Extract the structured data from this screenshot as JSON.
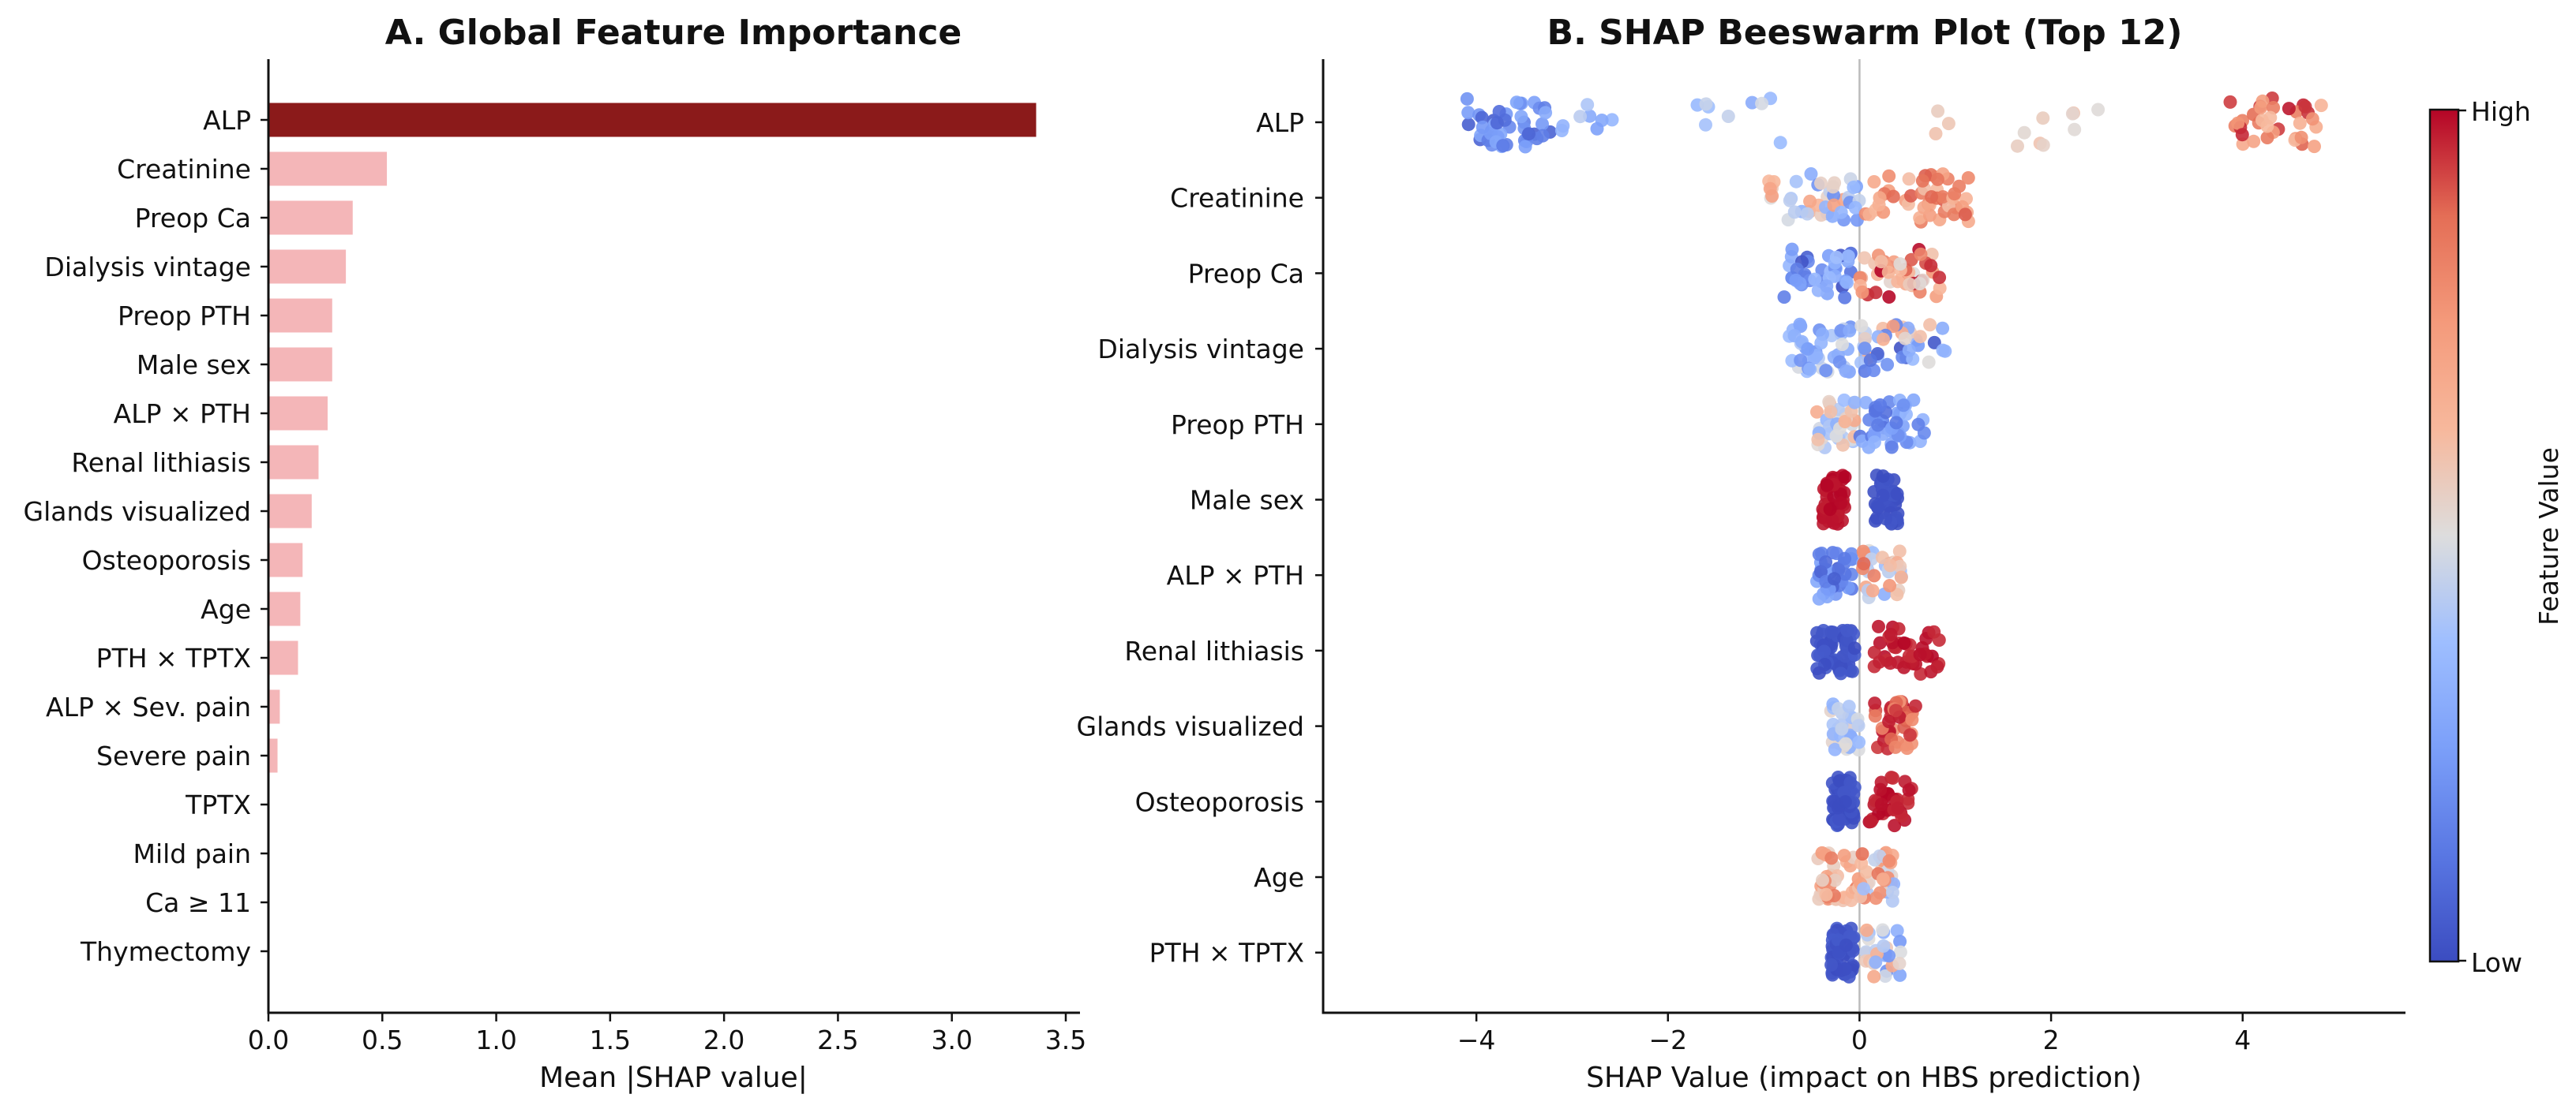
{
  "colors": {
    "bar_top": "#8b1a1a",
    "bar_rest": "#f4b6b8",
    "high": "#b40426",
    "mid": "#dddddd",
    "low": "#3b4cc0",
    "axis": "#111111",
    "zero_line": "#bbbbbb"
  },
  "chart_data": [
    {
      "type": "bar",
      "orientation": "horizontal",
      "title": "A. Global Feature Importance",
      "xlabel": "Mean |SHAP value|",
      "ylabel": "",
      "xlim": [
        0,
        3.5
      ],
      "xticks": [
        "0.0",
        "0.5",
        "1.0",
        "1.5",
        "2.0",
        "2.5",
        "3.0",
        "3.5"
      ],
      "categories": [
        "ALP",
        "Creatinine",
        "Preop Ca",
        "Dialysis vintage",
        "Preop PTH",
        "Male sex",
        "ALP × PTH",
        "Renal lithiasis",
        "Glands visualized",
        "Osteoporosis",
        "Age",
        "PTH × TPTX",
        "ALP × Sev. pain",
        "Severe pain",
        "TPTX",
        "Mild pain",
        "Ca ≥ 11",
        "Thymectomy"
      ],
      "values": [
        3.37,
        0.52,
        0.37,
        0.34,
        0.28,
        0.28,
        0.26,
        0.22,
        0.19,
        0.15,
        0.14,
        0.13,
        0.05,
        0.04,
        0.0,
        0.0,
        0.0,
        0.0
      ],
      "grid": false
    },
    {
      "type": "scatter",
      "subtype": "beeswarm",
      "title": "B. SHAP Beeswarm Plot (Top 12)",
      "xlabel": "SHAP Value (impact on HBS prediction)",
      "xlim": [
        -5.6,
        5.7
      ],
      "xticks": [
        "−4",
        "−2",
        "0",
        "2",
        "4"
      ],
      "colorbar": {
        "label": "Feature Value",
        "high_label": "High",
        "low_label": "Low",
        "colormap": "coolwarm"
      },
      "features": [
        {
          "name": "ALP",
          "clusters": [
            {
              "min": -4.1,
              "max": -3.2,
              "n": 45,
              "fmin": 0.05,
              "fmax": 0.3
            },
            {
              "min": -3.2,
              "max": -2.4,
              "n": 8,
              "fmin": 0.15,
              "fmax": 0.45
            },
            {
              "min": -1.7,
              "max": -0.7,
              "n": 9,
              "fmin": 0.3,
              "fmax": 0.55
            },
            {
              "min": 0.7,
              "max": 1.0,
              "n": 3,
              "fmin": 0.55,
              "fmax": 0.65
            },
            {
              "min": 1.5,
              "max": 2.5,
              "n": 9,
              "fmin": 0.5,
              "fmax": 0.6
            },
            {
              "min": 3.8,
              "max": 4.9,
              "n": 35,
              "fmin": 0.6,
              "fmax": 1.0
            }
          ]
        },
        {
          "name": "Creatinine",
          "clusters": [
            {
              "min": -0.95,
              "max": 0.0,
              "n": 40,
              "fmin": 0.2,
              "fmax": 0.75
            },
            {
              "min": 0.0,
              "max": 1.15,
              "n": 50,
              "fmin": 0.6,
              "fmax": 0.9
            }
          ]
        },
        {
          "name": "Preop Ca",
          "clusters": [
            {
              "min": -0.8,
              "max": -0.05,
              "n": 40,
              "fmin": 0.0,
              "fmax": 0.4
            },
            {
              "min": 0.0,
              "max": 0.85,
              "n": 45,
              "fmin": 0.5,
              "fmax": 1.0
            }
          ]
        },
        {
          "name": "Dialysis vintage",
          "clusters": [
            {
              "min": -0.75,
              "max": -0.05,
              "n": 40,
              "fmin": 0.2,
              "fmax": 0.5
            },
            {
              "min": 0.0,
              "max": 0.9,
              "n": 40,
              "fmin": 0.0,
              "fmax": 0.75
            }
          ]
        },
        {
          "name": "Preop PTH",
          "clusters": [
            {
              "min": -0.45,
              "max": -0.05,
              "n": 35,
              "fmin": 0.3,
              "fmax": 0.7
            },
            {
              "min": 0.0,
              "max": 0.7,
              "n": 45,
              "fmin": 0.1,
              "fmax": 0.35
            }
          ]
        },
        {
          "name": "Male sex",
          "clusters": [
            {
              "min": -0.4,
              "max": -0.15,
              "n": 55,
              "fmin": 0.97,
              "fmax": 1.0
            },
            {
              "min": 0.15,
              "max": 0.4,
              "n": 45,
              "fmin": 0.0,
              "fmax": 0.03
            }
          ]
        },
        {
          "name": "ALP × PTH",
          "clusters": [
            {
              "min": -0.45,
              "max": -0.05,
              "n": 40,
              "fmin": 0.05,
              "fmax": 0.3
            },
            {
              "min": 0.0,
              "max": 0.45,
              "n": 35,
              "fmin": 0.3,
              "fmax": 0.9
            }
          ]
        },
        {
          "name": "Renal lithiasis",
          "clusters": [
            {
              "min": -0.45,
              "max": -0.05,
              "n": 60,
              "fmin": 0.0,
              "fmax": 0.05
            },
            {
              "min": 0.15,
              "max": 0.85,
              "n": 40,
              "fmin": 0.95,
              "fmax": 1.0
            }
          ]
        },
        {
          "name": "Glands visualized",
          "clusters": [
            {
              "min": -0.3,
              "max": -0.0,
              "n": 35,
              "fmin": 0.3,
              "fmax": 0.55
            },
            {
              "min": 0.15,
              "max": 0.6,
              "n": 40,
              "fmin": 0.75,
              "fmax": 1.0
            }
          ]
        },
        {
          "name": "Osteoporosis",
          "clusters": [
            {
              "min": -0.3,
              "max": -0.05,
              "n": 55,
              "fmin": 0.0,
              "fmax": 0.05
            },
            {
              "min": 0.1,
              "max": 0.55,
              "n": 35,
              "fmin": 0.95,
              "fmax": 1.0
            }
          ]
        },
        {
          "name": "Age",
          "clusters": [
            {
              "min": -0.45,
              "max": 0.0,
              "n": 40,
              "fmin": 0.55,
              "fmax": 0.85
            },
            {
              "min": 0.0,
              "max": 0.4,
              "n": 40,
              "fmin": 0.3,
              "fmax": 0.9
            }
          ]
        },
        {
          "name": "PTH × TPTX",
          "clusters": [
            {
              "min": -0.3,
              "max": -0.05,
              "n": 55,
              "fmin": 0.0,
              "fmax": 0.05
            },
            {
              "min": 0.05,
              "max": 0.45,
              "n": 30,
              "fmin": 0.2,
              "fmax": 0.7
            }
          ]
        }
      ]
    }
  ]
}
